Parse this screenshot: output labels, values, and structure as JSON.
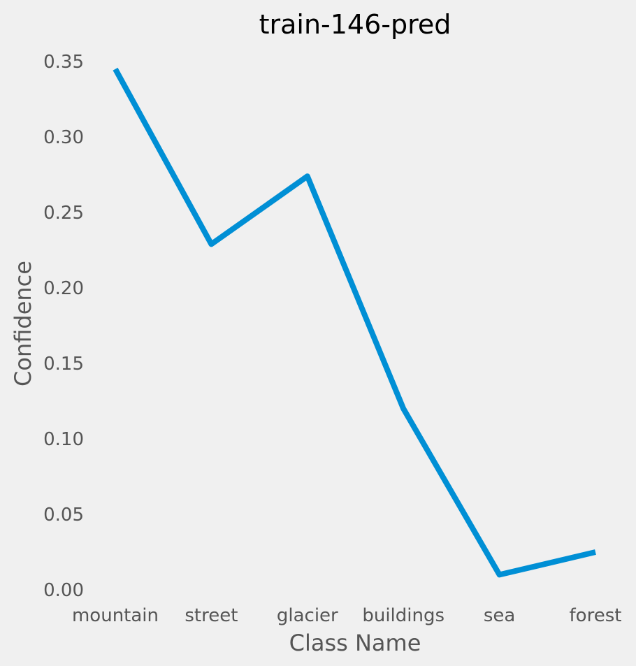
{
  "chart_data": {
    "type": "line",
    "title": "train-146-pred",
    "xlabel": "Class Name",
    "ylabel": "Confidence",
    "categories": [
      "mountain",
      "street",
      "glacier",
      "buildings",
      "sea",
      "forest"
    ],
    "series": [
      {
        "values": [
          0.345,
          0.229,
          0.274,
          0.12,
          0.01,
          0.025
        ],
        "color": "#008fd5"
      }
    ],
    "ylim": [
      0.0,
      0.35
    ],
    "yticks": [
      "0.00",
      "0.05",
      "0.10",
      "0.15",
      "0.20",
      "0.25",
      "0.30",
      "0.35"
    ],
    "grid": false,
    "background": "#f0f0f0",
    "text_color": "#555555"
  }
}
